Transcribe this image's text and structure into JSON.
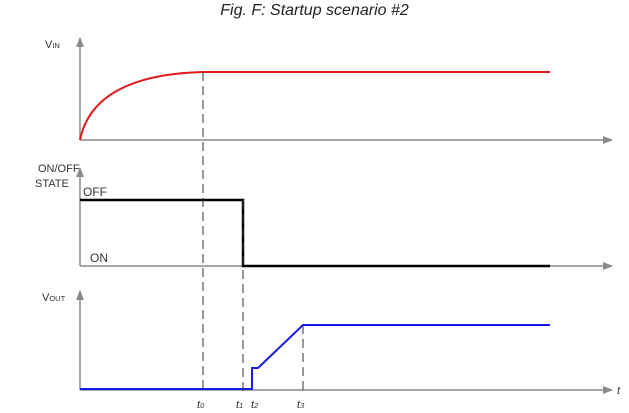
{
  "title": "Fig. F: Startup scenario #2",
  "panels": {
    "vin": {
      "label_main": "V",
      "label_sub": "IN"
    },
    "state": {
      "label_line1": "ON/OFF",
      "label_line2": "STATE",
      "off_label": "OFF",
      "on_label": "ON"
    },
    "vout": {
      "label_main": "V",
      "label_sub": "OUT"
    }
  },
  "time_axis": {
    "label": "t",
    "markers": [
      {
        "main": "t",
        "sub": "0"
      },
      {
        "main": "t",
        "sub": "1"
      },
      {
        "main": "t",
        "sub": "2"
      },
      {
        "main": "t",
        "sub": "3"
      }
    ]
  },
  "colors": {
    "vin": "#e01a1a",
    "state": "#000000",
    "vout": "#1a1ae6",
    "axis": "#8a8a8a",
    "dashed": "#333333"
  }
}
